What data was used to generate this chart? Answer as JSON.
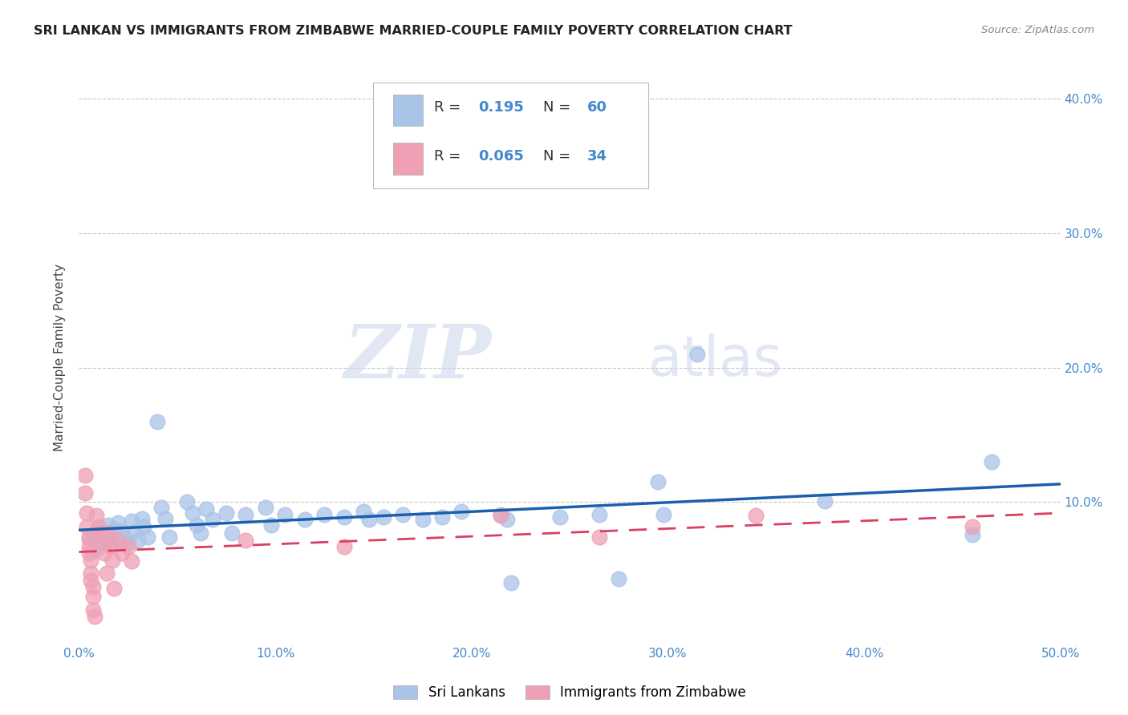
{
  "title": "SRI LANKAN VS IMMIGRANTS FROM ZIMBABWE MARRIED-COUPLE FAMILY POVERTY CORRELATION CHART",
  "source": "Source: ZipAtlas.com",
  "ylabel": "Married-Couple Family Poverty",
  "xlim": [
    0.0,
    0.5
  ],
  "ylim": [
    -0.005,
    0.42
  ],
  "xticks": [
    0.0,
    0.1,
    0.2,
    0.3,
    0.4,
    0.5
  ],
  "xticklabels": [
    "0.0%",
    "10.0%",
    "20.0%",
    "30.0%",
    "40.0%",
    "50.0%"
  ],
  "yticks": [
    0.0,
    0.1,
    0.2,
    0.3,
    0.4
  ],
  "yticklabels_right": [
    "",
    "10.0%",
    "20.0%",
    "30.0%",
    "40.0%"
  ],
  "watermark_zip": "ZIP",
  "watermark_atlas": "atlas",
  "sri_lanka_color": "#aac4e8",
  "zimbabwe_color": "#f0a0b5",
  "sri_lanka_line_color": "#1a5fad",
  "zimbabwe_line_color": "#d94060",
  "sri_lanka_R": 0.195,
  "zimbabwe_R": 0.065,
  "legend_label_sri": "Sri Lankans",
  "legend_label_zim": "Immigrants from Zimbabwe",
  "tick_color": "#4488cc",
  "grid_color": "#c8c8c8",
  "sri_lanka_points": [
    [
      0.005,
      0.074
    ],
    [
      0.007,
      0.072
    ],
    [
      0.008,
      0.068
    ],
    [
      0.009,
      0.065
    ],
    [
      0.01,
      0.08
    ],
    [
      0.012,
      0.075
    ],
    [
      0.013,
      0.07
    ],
    [
      0.015,
      0.083
    ],
    [
      0.015,
      0.076
    ],
    [
      0.017,
      0.072
    ],
    [
      0.018,
      0.08
    ],
    [
      0.019,
      0.073
    ],
    [
      0.02,
      0.085
    ],
    [
      0.022,
      0.078
    ],
    [
      0.023,
      0.073
    ],
    [
      0.025,
      0.07
    ],
    [
      0.027,
      0.086
    ],
    [
      0.028,
      0.078
    ],
    [
      0.03,
      0.072
    ],
    [
      0.032,
      0.088
    ],
    [
      0.033,
      0.082
    ],
    [
      0.035,
      0.074
    ],
    [
      0.04,
      0.16
    ],
    [
      0.042,
      0.096
    ],
    [
      0.044,
      0.088
    ],
    [
      0.046,
      0.074
    ],
    [
      0.055,
      0.1
    ],
    [
      0.058,
      0.092
    ],
    [
      0.06,
      0.083
    ],
    [
      0.062,
      0.077
    ],
    [
      0.065,
      0.095
    ],
    [
      0.068,
      0.087
    ],
    [
      0.075,
      0.092
    ],
    [
      0.078,
      0.077
    ],
    [
      0.085,
      0.091
    ],
    [
      0.095,
      0.096
    ],
    [
      0.098,
      0.083
    ],
    [
      0.105,
      0.091
    ],
    [
      0.115,
      0.087
    ],
    [
      0.125,
      0.091
    ],
    [
      0.135,
      0.089
    ],
    [
      0.145,
      0.093
    ],
    [
      0.148,
      0.087
    ],
    [
      0.155,
      0.089
    ],
    [
      0.165,
      0.091
    ],
    [
      0.175,
      0.087
    ],
    [
      0.185,
      0.089
    ],
    [
      0.195,
      0.093
    ],
    [
      0.215,
      0.091
    ],
    [
      0.218,
      0.087
    ],
    [
      0.22,
      0.04
    ],
    [
      0.245,
      0.089
    ],
    [
      0.265,
      0.091
    ],
    [
      0.275,
      0.043
    ],
    [
      0.295,
      0.115
    ],
    [
      0.298,
      0.091
    ],
    [
      0.315,
      0.21
    ],
    [
      0.38,
      0.101
    ],
    [
      0.455,
      0.076
    ],
    [
      0.465,
      0.13
    ]
  ],
  "zimbabwe_points": [
    [
      0.003,
      0.12
    ],
    [
      0.003,
      0.107
    ],
    [
      0.004,
      0.092
    ],
    [
      0.004,
      0.082
    ],
    [
      0.005,
      0.073
    ],
    [
      0.005,
      0.067
    ],
    [
      0.005,
      0.062
    ],
    [
      0.006,
      0.057
    ],
    [
      0.006,
      0.047
    ],
    [
      0.006,
      0.042
    ],
    [
      0.007,
      0.037
    ],
    [
      0.007,
      0.03
    ],
    [
      0.007,
      0.02
    ],
    [
      0.008,
      0.015
    ],
    [
      0.009,
      0.09
    ],
    [
      0.01,
      0.082
    ],
    [
      0.011,
      0.077
    ],
    [
      0.012,
      0.07
    ],
    [
      0.013,
      0.062
    ],
    [
      0.014,
      0.047
    ],
    [
      0.015,
      0.077
    ],
    [
      0.016,
      0.067
    ],
    [
      0.017,
      0.057
    ],
    [
      0.018,
      0.036
    ],
    [
      0.02,
      0.072
    ],
    [
      0.022,
      0.062
    ],
    [
      0.025,
      0.067
    ],
    [
      0.027,
      0.056
    ],
    [
      0.085,
      0.072
    ],
    [
      0.135,
      0.067
    ],
    [
      0.215,
      0.09
    ],
    [
      0.265,
      0.074
    ],
    [
      0.345,
      0.09
    ],
    [
      0.455,
      0.082
    ]
  ]
}
